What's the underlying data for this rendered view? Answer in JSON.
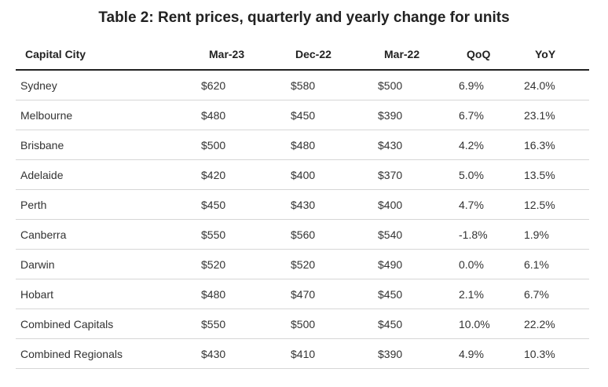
{
  "title": "Table 2: Rent prices, quarterly and yearly change for units",
  "chart_data": {
    "type": "table",
    "title": "Table 2: Rent prices, quarterly and yearly change for units",
    "columns": [
      "Capital City",
      "Mar-23",
      "Dec-22",
      "Mar-22",
      "QoQ",
      "YoY"
    ],
    "rows": [
      [
        "Sydney",
        "$620",
        "$580",
        "$500",
        "6.9%",
        "24.0%"
      ],
      [
        "Melbourne",
        "$480",
        "$450",
        "$390",
        "6.7%",
        "23.1%"
      ],
      [
        "Brisbane",
        "$500",
        "$480",
        "$430",
        "4.2%",
        "16.3%"
      ],
      [
        "Adelaide",
        "$420",
        "$400",
        "$370",
        "5.0%",
        "13.5%"
      ],
      [
        "Perth",
        "$450",
        "$430",
        "$400",
        "4.7%",
        "12.5%"
      ],
      [
        "Canberra",
        "$550",
        "$560",
        "$540",
        "-1.8%",
        "1.9%"
      ],
      [
        "Darwin",
        "$520",
        "$520",
        "$490",
        "0.0%",
        "6.1%"
      ],
      [
        "Hobart",
        "$480",
        "$470",
        "$450",
        "2.1%",
        "6.7%"
      ],
      [
        "Combined Capitals",
        "$550",
        "$500",
        "$450",
        "10.0%",
        "22.2%"
      ],
      [
        "Combined Regionals",
        "$430",
        "$410",
        "$390",
        "4.9%",
        "10.3%"
      ]
    ]
  }
}
